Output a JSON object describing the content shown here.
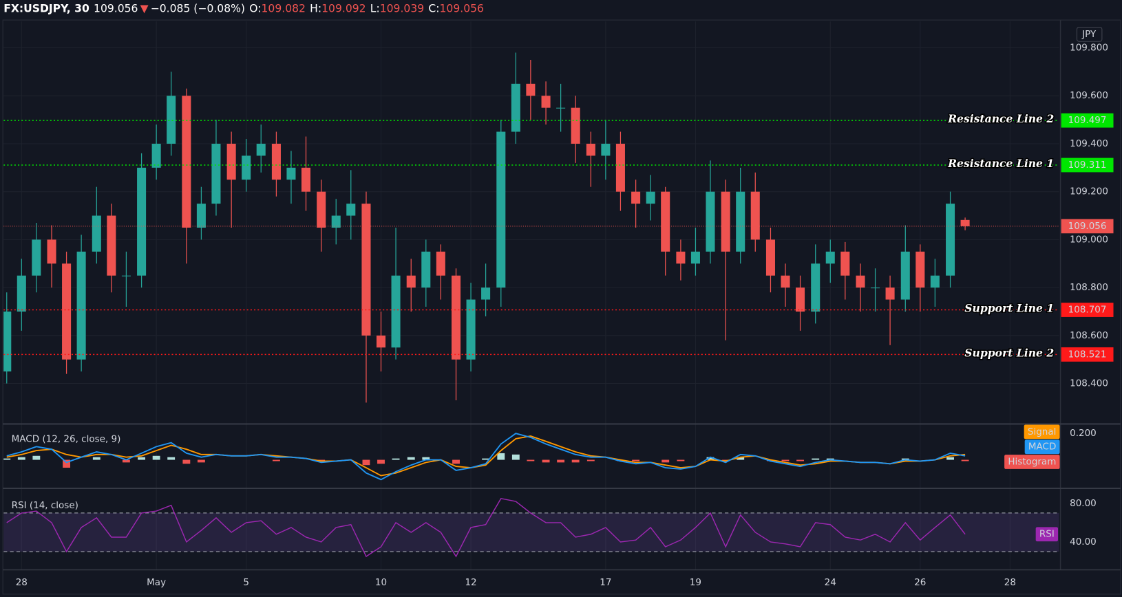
{
  "chart_data": [
    {
      "type": "candlestick",
      "title": "FX:USDJPY, 30",
      "change_arrow": "▼",
      "change": "−0.085 (−0.08%)",
      "ohlc_labels": [
        "O:",
        "H:",
        "L:",
        "C:"
      ],
      "currency": "JPY",
      "up_color": "#26a69a",
      "down_color": "#ef5350",
      "last_color": "#ef5350",
      "grid": true,
      "xlim": [
        -0.4,
        23.09
      ],
      "xticks": [
        {
          "value": 0,
          "label": "28"
        },
        {
          "value": 3,
          "label": "May"
        },
        {
          "value": 5,
          "label": "5"
        },
        {
          "value": 8,
          "label": "10"
        },
        {
          "value": 10,
          "label": "12"
        },
        {
          "value": 13,
          "label": "17"
        },
        {
          "value": 15,
          "label": "19"
        },
        {
          "value": 18,
          "label": "24"
        },
        {
          "value": 20,
          "label": "26"
        },
        {
          "value": 22,
          "label": "28"
        }
      ],
      "ylim": [
        108.24,
        109.91
      ],
      "yticks": [
        {
          "value": 108.4,
          "label": "108.400"
        },
        {
          "value": 108.6,
          "label": "108.600"
        },
        {
          "value": 108.8,
          "label": "108.800"
        },
        {
          "value": 109.0,
          "label": "109.000"
        },
        {
          "value": 109.2,
          "label": "109.200"
        },
        {
          "value": 109.4,
          "label": "109.400"
        },
        {
          "value": 109.6,
          "label": "109.600"
        },
        {
          "value": 109.8,
          "label": "109.800"
        }
      ],
      "levels": [
        {
          "name": "Resistance Line 2",
          "value": 109.497,
          "color": "#00e600",
          "text_color": "#000000"
        },
        {
          "name": "Resistance Line 1",
          "value": 109.311,
          "color": "#00e600",
          "text_color": "#000000"
        },
        {
          "name": "Support Line 1",
          "value": 108.707,
          "color": "#ff1a1a",
          "text_color": "#ffffff"
        },
        {
          "name": "Support Line 2",
          "value": 108.521,
          "color": "#ff1a1a",
          "text_color": "#ffffff"
        }
      ],
      "x": [
        -0.33,
        0,
        0.33,
        0.67,
        1,
        1.33,
        1.67,
        2,
        2.33,
        2.67,
        3,
        3.33,
        3.67,
        4,
        4.33,
        4.67,
        5,
        5.33,
        5.67,
        6,
        6.33,
        6.67,
        7,
        7.33,
        7.67,
        8,
        8.33,
        8.67,
        9,
        9.33,
        9.67,
        10,
        10.33,
        10.67,
        11,
        11.33,
        11.67,
        12,
        12.33,
        12.67,
        13,
        13.33,
        13.67,
        14,
        14.33,
        14.67,
        15,
        15.33,
        15.67,
        16,
        16.33,
        16.67,
        17,
        17.33,
        17.67,
        18,
        18.33,
        18.67,
        19,
        19.33,
        19.67,
        20,
        20.33,
        20.67,
        21
      ],
      "open": [
        108.45,
        108.7,
        108.85,
        109.0,
        108.9,
        108.5,
        108.95,
        109.1,
        108.85,
        108.85,
        109.3,
        109.4,
        109.6,
        109.05,
        109.15,
        109.4,
        109.25,
        109.35,
        109.4,
        109.25,
        109.3,
        109.2,
        109.05,
        109.1,
        109.15,
        108.6,
        108.55,
        108.85,
        108.8,
        108.95,
        108.85,
        108.5,
        108.75,
        108.8,
        109.45,
        109.65,
        109.6,
        109.55,
        109.55,
        109.4,
        109.35,
        109.4,
        109.2,
        109.15,
        109.2,
        108.95,
        108.9,
        108.95,
        109.2,
        108.95,
        109.2,
        109.0,
        108.85,
        108.8,
        108.7,
        108.9,
        108.95,
        108.85,
        108.8,
        108.8,
        108.75,
        108.95,
        108.8,
        108.85,
        109.082
      ],
      "high": [
        108.78,
        108.92,
        109.07,
        109.06,
        108.95,
        109.02,
        109.22,
        109.15,
        108.95,
        109.36,
        109.48,
        109.7,
        109.63,
        109.22,
        109.5,
        109.45,
        109.42,
        109.48,
        109.45,
        109.37,
        109.43,
        109.25,
        109.17,
        109.29,
        109.2,
        108.7,
        109.05,
        108.92,
        109.0,
        108.98,
        108.88,
        108.82,
        108.9,
        109.5,
        109.78,
        109.75,
        109.66,
        109.65,
        109.6,
        109.45,
        109.5,
        109.45,
        109.25,
        109.27,
        109.22,
        109.0,
        109.05,
        109.33,
        109.25,
        109.3,
        109.28,
        109.05,
        108.9,
        108.85,
        108.98,
        109.0,
        108.99,
        108.9,
        108.88,
        108.85,
        109.06,
        108.98,
        108.92,
        109.2,
        109.092
      ],
      "low": [
        108.4,
        108.62,
        108.78,
        108.8,
        108.44,
        108.45,
        108.9,
        108.78,
        108.72,
        108.8,
        109.25,
        109.35,
        108.9,
        109.0,
        109.1,
        109.05,
        109.2,
        109.28,
        109.18,
        109.15,
        109.12,
        108.95,
        108.98,
        109.0,
        108.32,
        108.45,
        108.5,
        108.7,
        108.72,
        108.75,
        108.33,
        108.45,
        108.68,
        108.72,
        109.4,
        109.5,
        109.48,
        109.45,
        109.32,
        109.22,
        109.25,
        109.12,
        109.05,
        109.08,
        108.85,
        108.83,
        108.85,
        108.9,
        108.58,
        108.9,
        108.95,
        108.78,
        108.72,
        108.62,
        108.65,
        108.82,
        108.75,
        108.7,
        108.7,
        108.56,
        108.7,
        108.7,
        108.72,
        108.8,
        109.039
      ],
      "close": [
        108.7,
        108.85,
        109.0,
        108.9,
        108.5,
        108.95,
        109.1,
        108.85,
        108.85,
        109.3,
        109.4,
        109.6,
        109.05,
        109.15,
        109.4,
        109.25,
        109.35,
        109.4,
        109.25,
        109.3,
        109.2,
        109.05,
        109.1,
        109.15,
        108.6,
        108.55,
        108.85,
        108.8,
        108.95,
        108.85,
        108.5,
        108.75,
        108.8,
        109.45,
        109.65,
        109.6,
        109.55,
        109.55,
        109.4,
        109.35,
        109.4,
        109.2,
        109.15,
        109.2,
        108.95,
        108.9,
        108.95,
        109.2,
        108.95,
        109.2,
        109.0,
        108.85,
        108.8,
        108.7,
        108.9,
        108.95,
        108.85,
        108.8,
        108.8,
        108.75,
        108.95,
        108.8,
        108.85,
        109.15,
        109.056
      ]
    },
    {
      "type": "macd",
      "title": "MACD (12, 26, close, 9)",
      "ylim": [
        -0.2,
        0.25
      ],
      "yticks": [
        {
          "value": 0.2,
          "label": "0.200"
        }
      ],
      "series": [
        {
          "name": "Signal",
          "color": "#ff9800",
          "values": [
            0.02,
            0.04,
            0.07,
            0.08,
            0.04,
            0.02,
            0.04,
            0.04,
            0.02,
            0.03,
            0.07,
            0.11,
            0.08,
            0.04,
            0.04,
            0.03,
            0.03,
            0.04,
            0.03,
            0.02,
            0.01,
            -0.01,
            -0.01,
            0.0,
            -0.06,
            -0.12,
            -0.1,
            -0.06,
            -0.02,
            0.0,
            -0.05,
            -0.06,
            -0.04,
            0.07,
            0.16,
            0.18,
            0.14,
            0.1,
            0.06,
            0.03,
            0.02,
            0.0,
            -0.02,
            -0.02,
            -0.04,
            -0.06,
            -0.05,
            0.0,
            -0.01,
            0.02,
            0.03,
            0.0,
            -0.02,
            -0.04,
            -0.03,
            -0.01,
            -0.01,
            -0.02,
            -0.02,
            -0.03,
            -0.01,
            -0.01,
            0.0,
            0.03,
            0.04
          ]
        },
        {
          "name": "MACD",
          "color": "#2196f3",
          "values": [
            0.03,
            0.06,
            0.1,
            0.08,
            -0.02,
            0.02,
            0.06,
            0.04,
            0.0,
            0.05,
            0.1,
            0.13,
            0.05,
            0.02,
            0.04,
            0.03,
            0.03,
            0.04,
            0.02,
            0.02,
            0.01,
            -0.02,
            -0.01,
            0.0,
            -0.1,
            -0.15,
            -0.09,
            -0.04,
            0.0,
            0.0,
            -0.08,
            -0.06,
            -0.03,
            0.12,
            0.2,
            0.17,
            0.12,
            0.08,
            0.04,
            0.02,
            0.02,
            -0.01,
            -0.03,
            -0.02,
            -0.06,
            -0.07,
            -0.05,
            0.02,
            -0.02,
            0.04,
            0.03,
            -0.01,
            -0.03,
            -0.05,
            -0.02,
            0.0,
            -0.01,
            -0.02,
            -0.02,
            -0.03,
            0.0,
            -0.01,
            0.0,
            0.05,
            0.03
          ]
        },
        {
          "name": "Histogram",
          "color": "#ef5350",
          "up_color": "#b2dfdb",
          "values": [
            0.01,
            0.02,
            0.03,
            0.0,
            -0.06,
            0.0,
            0.02,
            0.0,
            -0.02,
            0.02,
            0.03,
            0.02,
            -0.03,
            -0.02,
            0.0,
            0.0,
            0.0,
            0.0,
            -0.01,
            0.0,
            0.0,
            -0.01,
            0.0,
            0.0,
            -0.04,
            -0.03,
            0.01,
            0.02,
            0.02,
            0.0,
            -0.03,
            0.0,
            0.01,
            0.05,
            0.04,
            -0.01,
            -0.02,
            -0.02,
            -0.02,
            -0.01,
            0.0,
            -0.01,
            -0.01,
            0.0,
            -0.02,
            -0.01,
            0.0,
            0.02,
            -0.01,
            0.02,
            0.0,
            -0.01,
            -0.01,
            -0.01,
            0.01,
            0.01,
            0.0,
            0.0,
            0.0,
            0.0,
            0.01,
            0.0,
            0.0,
            0.02,
            -0.01
          ]
        }
      ]
    },
    {
      "type": "rsi",
      "title": "RSI (14, close)",
      "ylim": [
        12.6,
        90.4
      ],
      "band": [
        30,
        70
      ],
      "yticks": [
        {
          "value": 40,
          "label": "40.00"
        },
        {
          "value": 80,
          "label": "80.00"
        }
      ],
      "series": [
        {
          "name": "RSI",
          "color": "#9c27b0",
          "values": [
            60,
            70,
            72,
            60,
            30,
            55,
            65,
            45,
            45,
            70,
            72,
            78,
            40,
            52,
            65,
            50,
            60,
            62,
            48,
            55,
            45,
            40,
            55,
            58,
            25,
            35,
            60,
            50,
            60,
            50,
            25,
            55,
            58,
            85,
            82,
            70,
            60,
            60,
            45,
            48,
            55,
            40,
            42,
            55,
            35,
            42,
            55,
            70,
            35,
            68,
            50,
            40,
            38,
            35,
            60,
            58,
            45,
            42,
            48,
            40,
            60,
            42,
            55,
            68,
            48
          ]
        }
      ]
    }
  ]
}
